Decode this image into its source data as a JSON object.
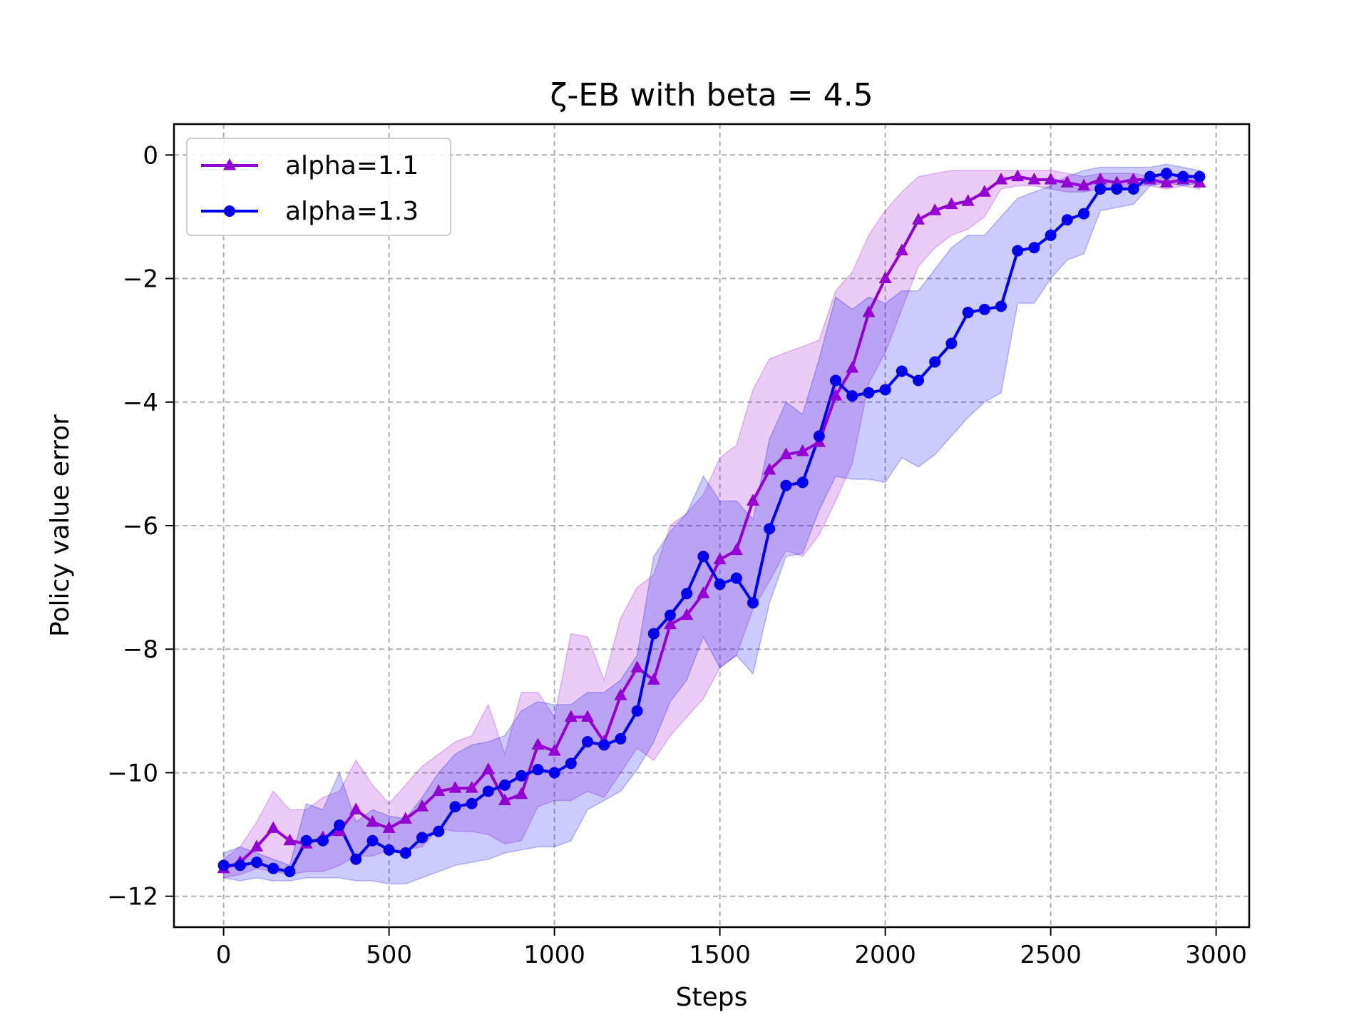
{
  "chart_data": {
    "type": "line",
    "title": "ζ-EB with beta = 4.5",
    "xlabel": "Steps",
    "ylabel": "Policy value error",
    "xlim": [
      -150,
      3100
    ],
    "ylim": [
      -12.5,
      0.5
    ],
    "xticks": [
      0,
      500,
      1000,
      1500,
      2000,
      2500,
      3000
    ],
    "yticks": [
      0,
      -2,
      -4,
      -6,
      -8,
      -10,
      -12
    ],
    "ytick_labels": [
      "0",
      "−2",
      "−4",
      "−6",
      "−8",
      "−10",
      "−12"
    ],
    "grid": true,
    "legend_position": "upper-left",
    "x": [
      0,
      50,
      100,
      150,
      200,
      250,
      300,
      350,
      400,
      450,
      500,
      550,
      600,
      650,
      700,
      750,
      800,
      850,
      900,
      950,
      1000,
      1050,
      1100,
      1150,
      1200,
      1250,
      1300,
      1350,
      1400,
      1450,
      1500,
      1550,
      1600,
      1650,
      1700,
      1750,
      1800,
      1850,
      1900,
      1950,
      2000,
      2050,
      2100,
      2150,
      2200,
      2250,
      2300,
      2350,
      2400,
      2450,
      2500,
      2550,
      2600,
      2650,
      2700,
      2750,
      2800,
      2850,
      2900,
      2950
    ],
    "series": [
      {
        "name": "alpha=1.1",
        "color": "#9400D3",
        "marker": "triangle",
        "values": [
          -11.55,
          -11.45,
          -11.2,
          -10.9,
          -11.1,
          -11.15,
          -11.05,
          -10.95,
          -10.6,
          -10.8,
          -10.9,
          -10.75,
          -10.55,
          -10.3,
          -10.25,
          -10.25,
          -9.95,
          -10.45,
          -10.35,
          -9.55,
          -9.65,
          -9.1,
          -9.1,
          -9.5,
          -8.75,
          -8.3,
          -8.5,
          -7.6,
          -7.45,
          -7.1,
          -6.55,
          -6.4,
          -5.6,
          -5.1,
          -4.85,
          -4.8,
          -4.65,
          -3.9,
          -3.45,
          -2.55,
          -2.0,
          -1.55,
          -1.05,
          -0.9,
          -0.8,
          -0.75,
          -0.6,
          -0.4,
          -0.35,
          -0.4,
          -0.4,
          -0.45,
          -0.5,
          -0.4,
          -0.45,
          -0.4,
          -0.4,
          -0.45,
          -0.4,
          -0.45
        ],
        "upper": [
          -11.4,
          -11.2,
          -10.8,
          -10.3,
          -10.6,
          -10.6,
          -10.4,
          -10.3,
          -9.8,
          -10.2,
          -10.5,
          -10.2,
          -9.9,
          -9.7,
          -9.5,
          -9.4,
          -8.9,
          -9.7,
          -8.7,
          -8.7,
          -9.1,
          -7.75,
          -7.8,
          -8.5,
          -7.5,
          -7.0,
          -6.8,
          -6.0,
          -5.8,
          -5.5,
          -4.9,
          -4.7,
          -3.8,
          -3.3,
          -3.2,
          -3.1,
          -3.0,
          -2.2,
          -1.9,
          -1.3,
          -0.9,
          -0.6,
          -0.35,
          -0.3,
          -0.25,
          -0.25,
          -0.25,
          -0.25,
          -0.25,
          -0.25,
          -0.25,
          -0.3,
          -0.35,
          -0.3,
          -0.3,
          -0.3,
          -0.35,
          -0.35,
          -0.3,
          -0.35
        ],
        "lower": [
          -11.7,
          -11.65,
          -11.55,
          -11.6,
          -11.65,
          -11.6,
          -11.6,
          -11.5,
          -11.35,
          -11.35,
          -11.25,
          -11.25,
          -11.2,
          -10.9,
          -10.95,
          -10.95,
          -11.0,
          -11.15,
          -11.1,
          -10.55,
          -10.45,
          -10.45,
          -10.3,
          -10.4,
          -10.0,
          -9.6,
          -9.8,
          -9.4,
          -9.1,
          -8.8,
          -8.3,
          -8.1,
          -7.35,
          -6.9,
          -6.4,
          -6.5,
          -6.15,
          -5.6,
          -5.0,
          -3.7,
          -3.2,
          -2.5,
          -1.8,
          -1.5,
          -1.3,
          -1.2,
          -1.0,
          -0.55,
          -0.5,
          -0.5,
          -0.55,
          -0.6,
          -0.6,
          -0.55,
          -0.55,
          -0.5,
          -0.5,
          -0.55,
          -0.5,
          -0.55
        ]
      },
      {
        "name": "alpha=1.3",
        "color": "#0000EE",
        "marker": "circle",
        "values": [
          -11.5,
          -11.5,
          -11.45,
          -11.55,
          -11.6,
          -11.1,
          -11.1,
          -10.85,
          -11.4,
          -11.1,
          -11.25,
          -11.3,
          -11.05,
          -10.95,
          -10.55,
          -10.5,
          -10.3,
          -10.2,
          -10.05,
          -9.95,
          -10.0,
          -9.85,
          -9.5,
          -9.55,
          -9.45,
          -9.0,
          -7.75,
          -7.45,
          -7.1,
          -6.5,
          -6.95,
          -6.85,
          -7.25,
          -6.05,
          -5.35,
          -5.3,
          -4.55,
          -3.65,
          -3.9,
          -3.85,
          -3.8,
          -3.5,
          -3.65,
          -3.35,
          -3.05,
          -2.55,
          -2.5,
          -2.45,
          -1.55,
          -1.5,
          -1.3,
          -1.05,
          -0.95,
          -0.55,
          -0.55,
          -0.55,
          -0.35,
          -0.3,
          -0.35,
          -0.35
        ],
        "upper": [
          -11.3,
          -11.2,
          -11.3,
          -11.4,
          -11.5,
          -10.5,
          -10.6,
          -10.0,
          -10.8,
          -10.6,
          -10.7,
          -10.75,
          -10.4,
          -10.0,
          -9.7,
          -9.55,
          -9.5,
          -9.4,
          -9.0,
          -8.85,
          -8.9,
          -8.9,
          -8.7,
          -8.7,
          -8.5,
          -8.1,
          -6.5,
          -6.1,
          -5.8,
          -5.2,
          -5.6,
          -5.6,
          -5.9,
          -4.6,
          -4.0,
          -4.2,
          -3.3,
          -2.3,
          -2.5,
          -2.3,
          -2.4,
          -2.2,
          -2.2,
          -1.85,
          -1.5,
          -1.3,
          -1.3,
          -1.0,
          -0.7,
          -0.6,
          -0.5,
          -0.35,
          -0.25,
          -0.2,
          -0.2,
          -0.2,
          -0.2,
          -0.15,
          -0.2,
          -0.25
        ],
        "lower": [
          -11.7,
          -11.75,
          -11.7,
          -11.75,
          -11.75,
          -11.7,
          -11.7,
          -11.7,
          -11.75,
          -11.75,
          -11.8,
          -11.8,
          -11.7,
          -11.6,
          -11.5,
          -11.45,
          -11.4,
          -11.3,
          -11.25,
          -11.2,
          -11.2,
          -11.1,
          -10.6,
          -10.45,
          -10.3,
          -9.95,
          -9.5,
          -8.85,
          -8.5,
          -7.8,
          -8.3,
          -8.1,
          -8.4,
          -7.25,
          -6.5,
          -6.45,
          -5.75,
          -5.2,
          -5.25,
          -5.25,
          -5.3,
          -4.9,
          -5.05,
          -4.85,
          -4.55,
          -4.25,
          -4.0,
          -3.85,
          -2.4,
          -2.4,
          -2.0,
          -1.7,
          -1.6,
          -0.9,
          -0.85,
          -0.8,
          -0.5,
          -0.45,
          -0.5,
          -0.45
        ]
      }
    ]
  }
}
